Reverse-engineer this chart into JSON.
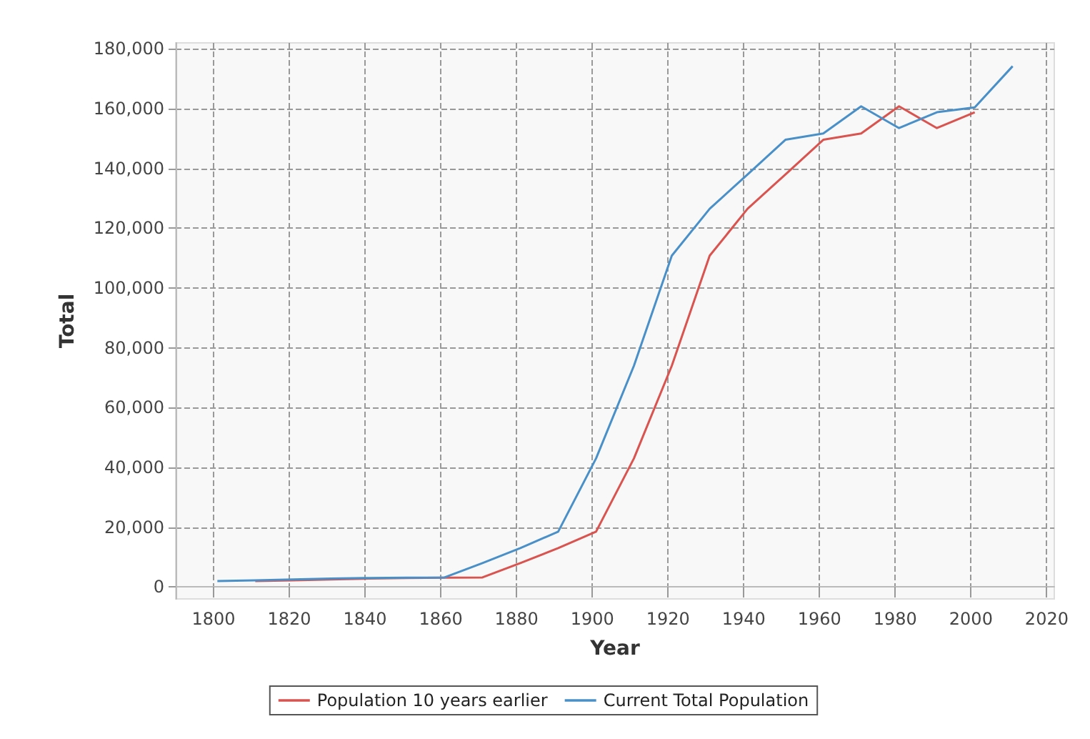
{
  "chart_data": {
    "type": "line",
    "xlabel": "Year",
    "ylabel": "Total",
    "xlim": [
      1790,
      2022
    ],
    "xticks": [
      1800,
      1820,
      1840,
      1860,
      1880,
      1900,
      1920,
      1940,
      1960,
      1980,
      2000,
      2020
    ],
    "ylim": [
      -4000,
      182000
    ],
    "yticks": [
      {
        "value": 0,
        "label": "0"
      },
      {
        "value": 20000,
        "label": "20,000"
      },
      {
        "value": 40000,
        "label": "40,000"
      },
      {
        "value": 60000,
        "label": "60,000"
      },
      {
        "value": 80000,
        "label": "80,000"
      },
      {
        "value": 100000,
        "label": "100,000"
      },
      {
        "value": 120000,
        "label": "120,000"
      },
      {
        "value": 140000,
        "label": "140,000"
      },
      {
        "value": 160000,
        "label": "160,000"
      },
      {
        "value": 180000,
        "label": "180,000"
      }
    ],
    "grid": true,
    "legend": "bottom",
    "marker": "none",
    "line_style": "solid",
    "series": [
      {
        "name": "Population 10 years earlier",
        "color": "#d9534f",
        "x": [
          1811,
          1821,
          1831,
          1841,
          1851,
          1861,
          1871,
          1881,
          1891,
          1901,
          1911,
          1921,
          1931,
          1941,
          1951,
          1961,
          1971,
          1981,
          1991,
          2001
        ],
        "values": [
          2000,
          2200,
          2500,
          2800,
          3000,
          3100,
          3200,
          8000,
          13000,
          18500,
          43000,
          74000,
          110800,
          126500,
          138000,
          149600,
          151700,
          160800,
          153500,
          158800
        ]
      },
      {
        "name": "Current Total Population",
        "color": "#4a90c8",
        "x": [
          1801,
          1811,
          1821,
          1831,
          1841,
          1851,
          1861,
          1871,
          1881,
          1891,
          1901,
          1911,
          1921,
          1931,
          1941,
          1951,
          1961,
          1971,
          1981,
          1991,
          2001,
          2011
        ],
        "values": [
          2000,
          2200,
          2500,
          2800,
          3000,
          3100,
          3200,
          8000,
          13000,
          18500,
          43000,
          74000,
          110800,
          126500,
          138000,
          149600,
          151700,
          160800,
          153500,
          158800,
          160400,
          174200
        ]
      }
    ]
  }
}
